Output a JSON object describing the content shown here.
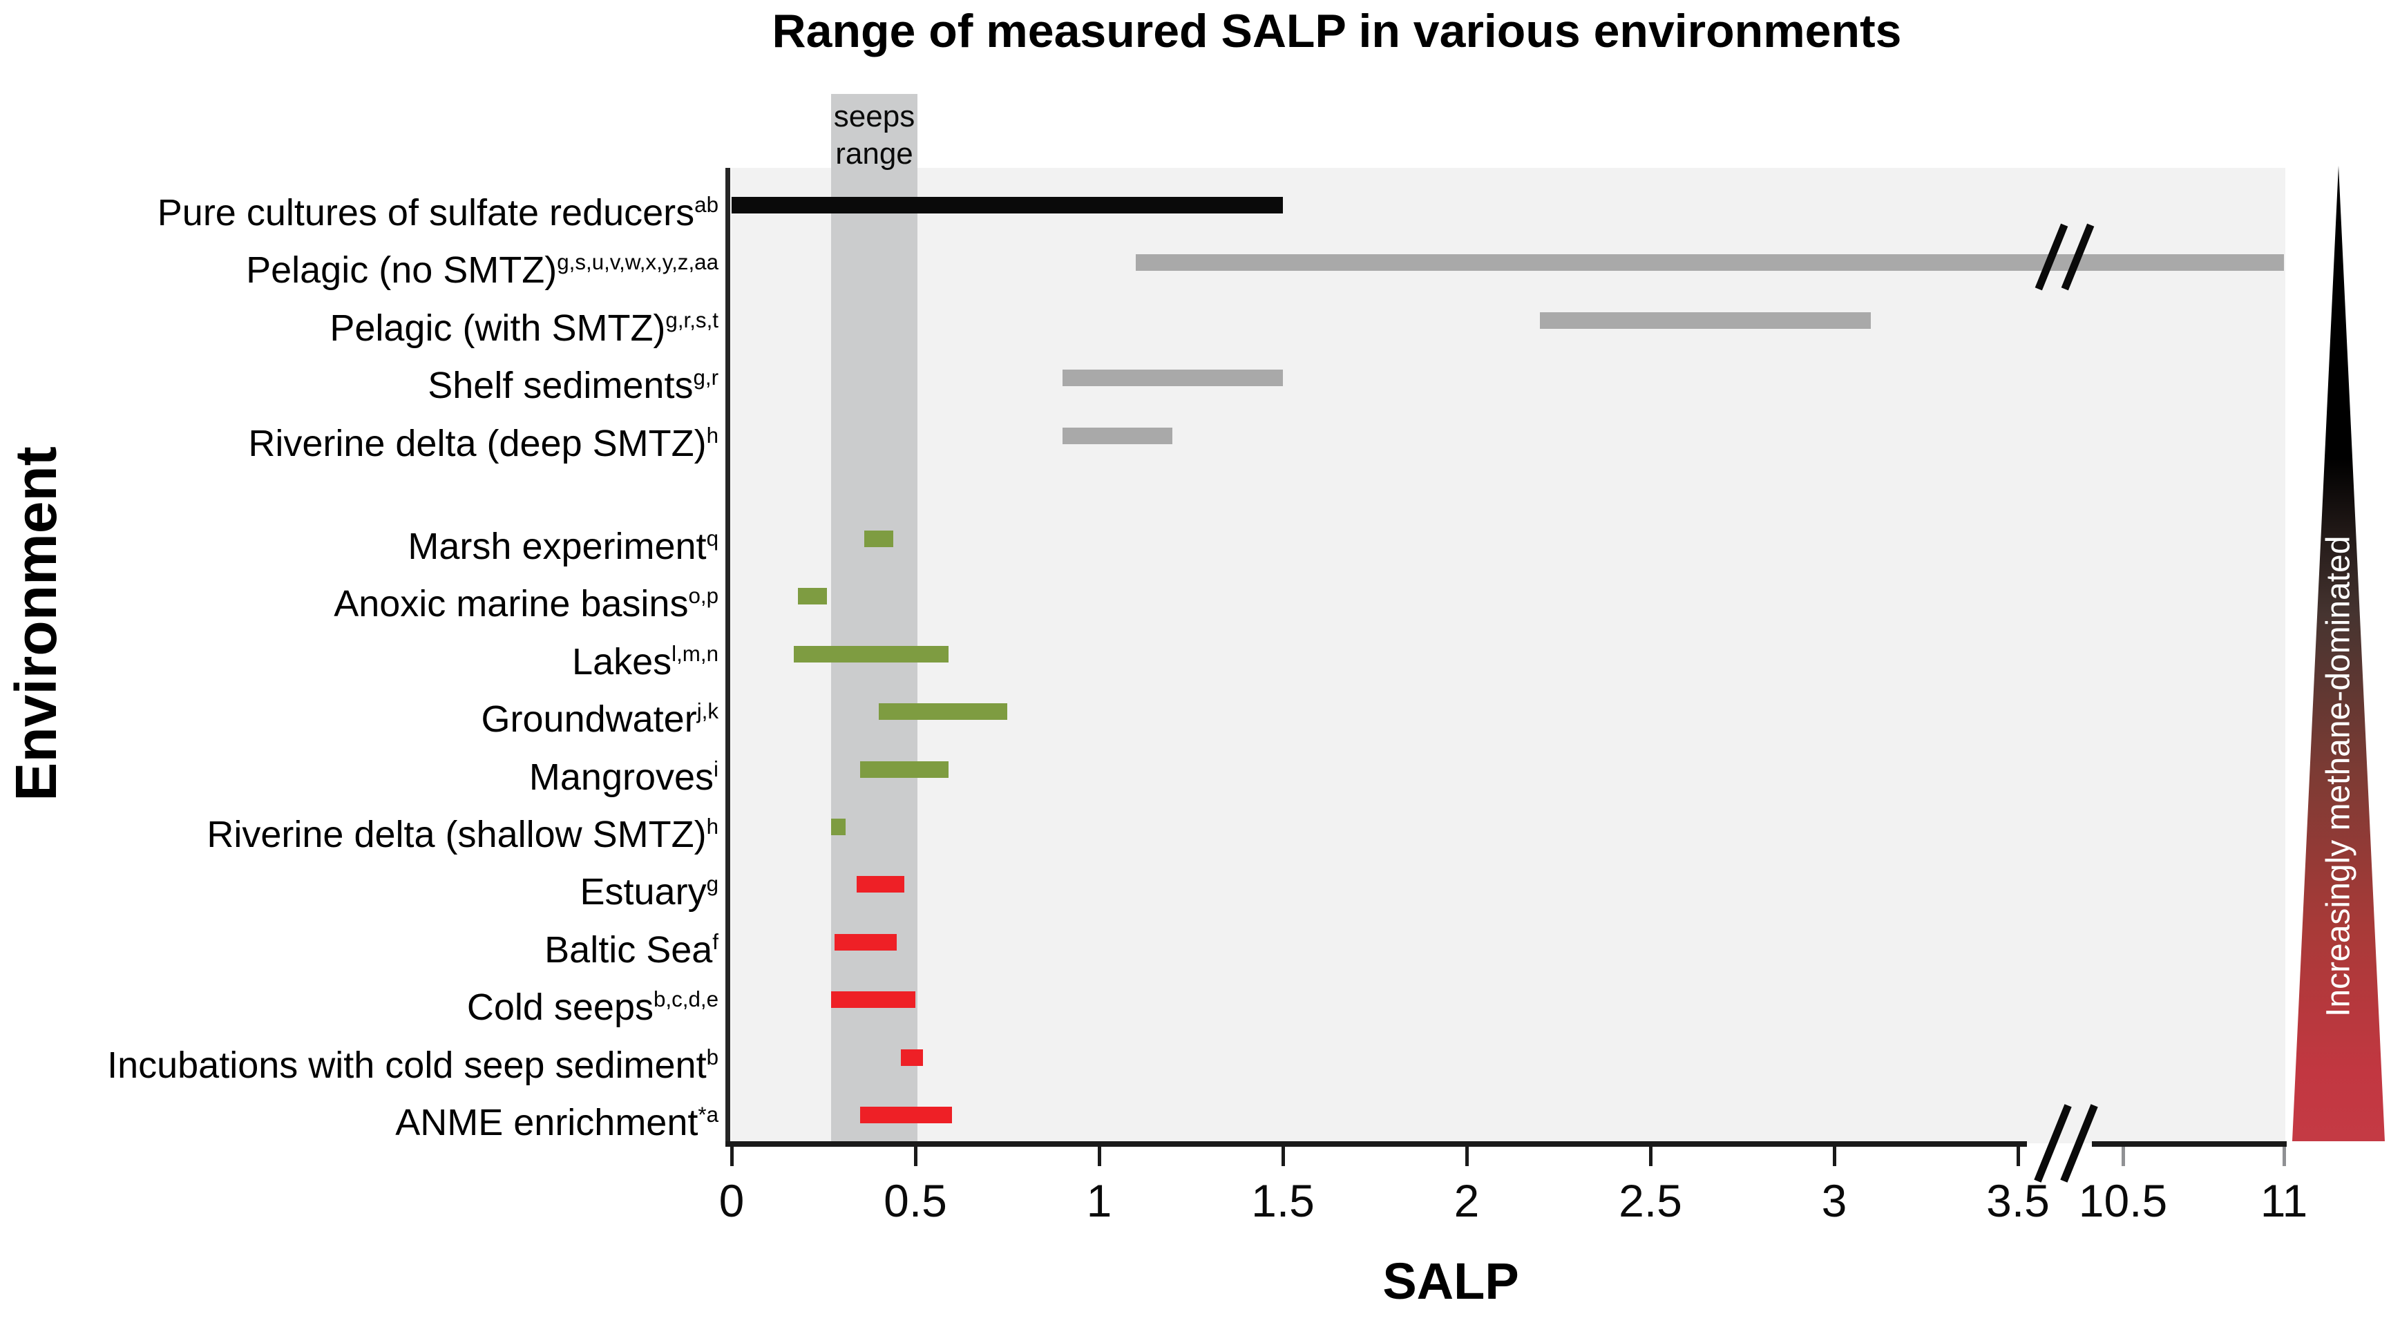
{
  "chart_data": {
    "type": "range_bar",
    "title": "Range of measured SALP in various environments",
    "xlabel": "SALP",
    "ylabel": "Environment",
    "x_axis": {
      "ticks_main": [
        "0",
        "0.5",
        "1",
        "1.5",
        "2",
        "2.5",
        "3",
        "3.5"
      ],
      "ticks_main_values": [
        0,
        0.5,
        1,
        1.5,
        2,
        2.5,
        3,
        3.5
      ],
      "ticks_after_break": [
        "10.5",
        "11"
      ],
      "ticks_after_break_values": [
        10.5,
        11
      ],
      "axis_break_between": [
        3.5,
        10.5
      ],
      "grid": false
    },
    "annotation_band": {
      "label": "seeps range",
      "label_lines": [
        "seeps",
        "range"
      ],
      "start": 0.27,
      "end": 0.5
    },
    "wedge_label": "Increasingly methane-dominated",
    "categories": [
      {
        "label": "Pure cultures of sulfate reducers",
        "sup": "ab",
        "start": 0,
        "end": 1.5,
        "group": "pure-culture"
      },
      {
        "label": "Pelagic (no SMTZ)",
        "sup": "g,s,u,v,w,x,y,z,aa",
        "start": 1.1,
        "end": 11,
        "group": "marine-sediment",
        "has_break": true
      },
      {
        "label": "Pelagic (with SMTZ)",
        "sup": "g,r,s,t",
        "start": 2.2,
        "end": 3.1,
        "group": "marine-sediment"
      },
      {
        "label": "Shelf sediments",
        "sup": "g,r",
        "start": 0.9,
        "end": 1.5,
        "group": "marine-sediment"
      },
      {
        "label": "Riverine delta (deep SMTZ)",
        "sup": "h",
        "start": 0.9,
        "end": 1.2,
        "group": "marine-sediment"
      },
      {
        "label": "Marsh experiment",
        "sup": "q",
        "start": 0.36,
        "end": 0.44,
        "group": "organic-rich",
        "gap_before": true
      },
      {
        "label": "Anoxic marine basins",
        "sup": "o,p",
        "start": 0.18,
        "end": 0.26,
        "group": "organic-rich"
      },
      {
        "label": "Lakes",
        "sup": "l,m,n",
        "start": 0.17,
        "end": 0.59,
        "group": "organic-rich"
      },
      {
        "label": "Groundwater",
        "sup": "j,k",
        "start": 0.4,
        "end": 0.75,
        "group": "organic-rich"
      },
      {
        "label": "Mangroves",
        "sup": "i",
        "start": 0.35,
        "end": 0.59,
        "group": "organic-rich"
      },
      {
        "label": "Riverine delta (shallow SMTZ)",
        "sup": "h",
        "start": 0.27,
        "end": 0.31,
        "group": "organic-rich"
      },
      {
        "label": "Estuary",
        "sup": "g",
        "start": 0.34,
        "end": 0.47,
        "group": "methane-rich"
      },
      {
        "label": "Baltic Sea",
        "sup": "f",
        "start": 0.28,
        "end": 0.45,
        "group": "methane-rich"
      },
      {
        "label": "Cold seeps",
        "sup": "b,c,d,e",
        "start": 0.27,
        "end": 0.5,
        "group": "methane-rich"
      },
      {
        "label": "Incubations with cold seep sediment",
        "sup": "b",
        "start": 0.46,
        "end": 0.52,
        "group": "methane-rich"
      },
      {
        "label": "ANME enrichment",
        "sup": "*a",
        "start": 0.35,
        "end": 0.6,
        "group": "methane-rich"
      }
    ],
    "colors": {
      "pure_culture_bar": "#0a0a0a",
      "marine_sediment_bar": "#a9a9a9",
      "organic_rich_bar": "#7e9c41",
      "methane_rich_bar": "#ee2026",
      "seeps_band": "#cbcccd",
      "plot_background": "#f2f2f2",
      "axis": "#1a1a1a",
      "wedge_top": "#000000",
      "wedge_bottom": "#c43a44",
      "wedge_text": "#ffffff"
    }
  }
}
